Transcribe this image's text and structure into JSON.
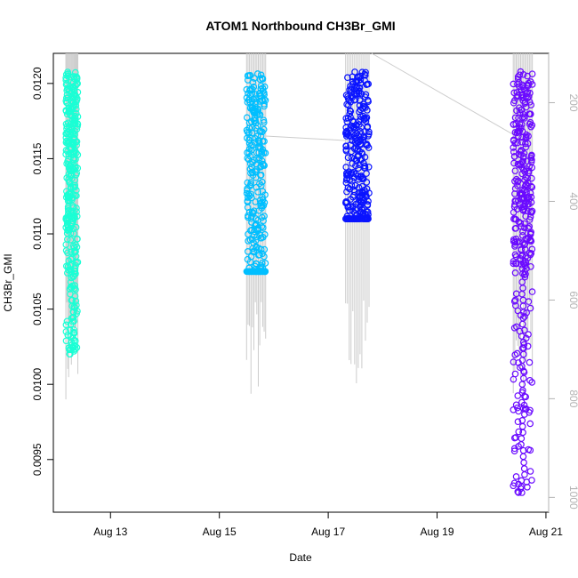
{
  "chart_data": {
    "type": "scatter",
    "title": "ATOM1 Northbound CH3Br_GMI",
    "xlabel": "Date",
    "ylabel": "CH3Br_GMI",
    "x_ticks": [
      "Aug 13",
      "Aug 15",
      "Aug 17",
      "Aug 19",
      "Aug 21"
    ],
    "x_tick_days": [
      13,
      15,
      17,
      19,
      21
    ],
    "xlim_days": [
      11.95,
      21.05
    ],
    "ylim": [
      0.00915,
      0.0122
    ],
    "y_ticks": [
      0.0095,
      0.01,
      0.0105,
      0.011,
      0.0115,
      0.012
    ],
    "y_tick_labels": [
      "0.0095",
      "0.0100",
      "0.0105",
      "0.0110",
      "0.0115",
      "0.0120"
    ],
    "y2_ticks": [
      200,
      400,
      600,
      800,
      1000
    ],
    "y2_tick_labels": [
      "200",
      "400",
      "600",
      "800",
      "1000"
    ],
    "y2lim": [
      1030,
      100
    ],
    "flight_track_color": "#cccccc",
    "series": [
      {
        "color": "#1affd5",
        "day_start": 12.18,
        "day_end": 12.4,
        "y_core_min": 0.011,
        "y_core_max": 0.01208,
        "y_tail_min": 0.0102
      },
      {
        "color": "#00bfff",
        "day_start": 15.5,
        "day_end": 15.85,
        "y_core_min": 0.01075,
        "y_core_max": 0.01208,
        "y_tail_min": 0.01075
      },
      {
        "color": "#0a14ff",
        "day_start": 17.32,
        "day_end": 17.75,
        "y_core_min": 0.0111,
        "y_core_max": 0.01208,
        "y_tail_min": 0.0111
      },
      {
        "color": "#6a0aff",
        "day_start": 20.4,
        "day_end": 20.75,
        "y_core_min": 0.0107,
        "y_core_max": 0.01208,
        "y_tail_min": 0.00928
      }
    ],
    "grid": false,
    "legend": "none"
  }
}
